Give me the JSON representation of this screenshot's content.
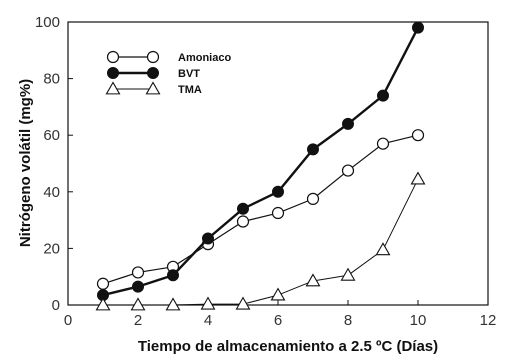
{
  "chart_data": {
    "type": "line",
    "xlabel": "Tiempo de almacenamiento a 2.5 ºC (Días)",
    "ylabel": "Nitrógeno volátil (mg%)",
    "xlim": [
      0,
      12
    ],
    "ylim": [
      0,
      100
    ],
    "xticks": [
      0,
      2,
      4,
      6,
      8,
      10,
      12
    ],
    "yticks": [
      0,
      20,
      40,
      60,
      80,
      100
    ],
    "grid": false,
    "legend_position": "top-left",
    "x": [
      1,
      2,
      3,
      4,
      5,
      6,
      7,
      8,
      9,
      10
    ],
    "series": [
      {
        "name": "Amoniaco",
        "marker": "open-circle",
        "values": [
          7.5,
          11.5,
          13.5,
          21.5,
          29.5,
          32.5,
          37.5,
          47.5,
          57,
          60
        ]
      },
      {
        "name": "BVT",
        "marker": "filled-circle",
        "values": [
          3.5,
          6.5,
          10.5,
          23.5,
          34,
          40,
          55,
          64,
          74,
          98
        ]
      },
      {
        "name": "TMA",
        "marker": "open-triangle",
        "values": [
          0,
          0,
          0,
          0.3,
          0.3,
          3.5,
          8.5,
          10.5,
          19.5,
          44.5
        ]
      }
    ]
  }
}
